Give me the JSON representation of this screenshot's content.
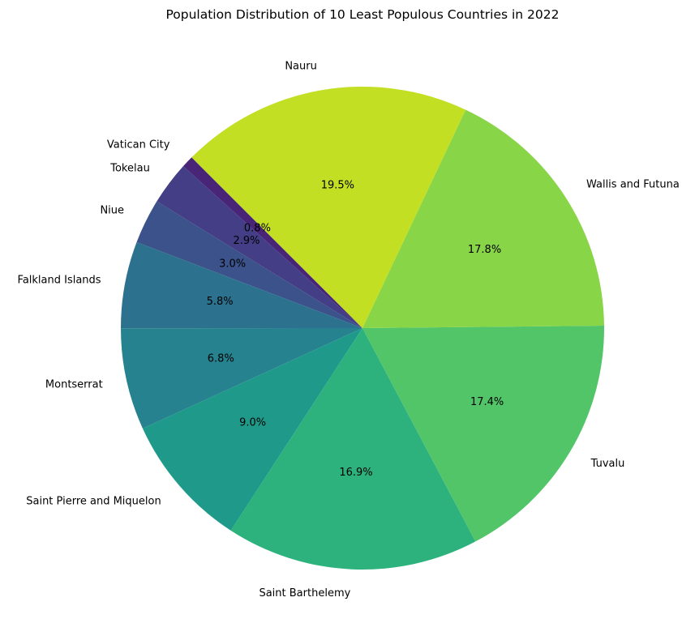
{
  "chart_data": {
    "type": "pie",
    "title": "Population Distribution of 10 Least Populous Countries in 2022",
    "start_angle_deg": 135,
    "direction": "counterclockwise",
    "slices": [
      {
        "label": "Vatican City",
        "value": 0.8,
        "pct_label": "0.8%",
        "color": "#482576"
      },
      {
        "label": "Tokelau",
        "value": 2.9,
        "pct_label": "2.9%",
        "color": "#433e85"
      },
      {
        "label": "Niue",
        "value": 3.0,
        "pct_label": "3.0%",
        "color": "#3b528b"
      },
      {
        "label": "Falkland Islands",
        "value": 5.8,
        "pct_label": "5.8%",
        "color": "#2c728e"
      },
      {
        "label": "Montserrat",
        "value": 6.8,
        "pct_label": "6.8%",
        "color": "#26828e"
      },
      {
        "label": "Saint Pierre and Miquelon",
        "value": 9.0,
        "pct_label": "9.0%",
        "color": "#1f9a8a"
      },
      {
        "label": "Saint Barthelemy",
        "value": 16.9,
        "pct_label": "16.9%",
        "color": "#2db27d"
      },
      {
        "label": "Tuvalu",
        "value": 17.4,
        "pct_label": "17.4%",
        "color": "#52c569"
      },
      {
        "label": "Wallis and Futuna",
        "value": 17.8,
        "pct_label": "17.8%",
        "color": "#89d548"
      },
      {
        "label": "Nauru",
        "value": 19.5,
        "pct_label": "19.5%",
        "color": "#c2df23"
      }
    ]
  }
}
